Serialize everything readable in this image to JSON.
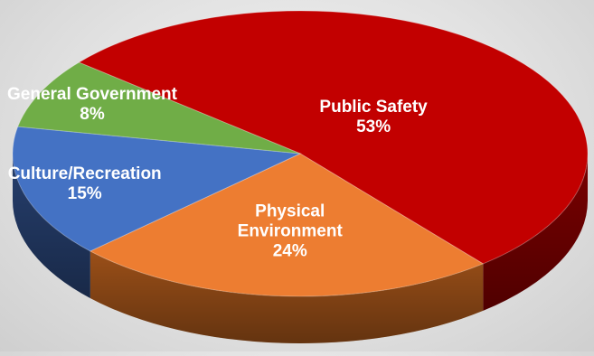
{
  "chart_data": {
    "type": "pie",
    "title": "",
    "three_d": true,
    "slices": [
      {
        "label": "Public Safety",
        "value": 53,
        "value_label": "53%",
        "color": "#c20000",
        "side_color": "#7a0000"
      },
      {
        "label": "Physical Environment",
        "label_lines": [
          "Physical",
          "Environment"
        ],
        "value": 24,
        "value_label": "24%",
        "color": "#ed7d31",
        "side_color": "#9a4f18"
      },
      {
        "label": "Culture/Recreation",
        "value": 15,
        "value_label": "15%",
        "color": "#4472c4",
        "side_color": "#263f6e"
      },
      {
        "label": "General Government",
        "value": 8,
        "value_label": "8%",
        "color": "#70ad47",
        "side_color": "#2f4a1d"
      }
    ]
  }
}
